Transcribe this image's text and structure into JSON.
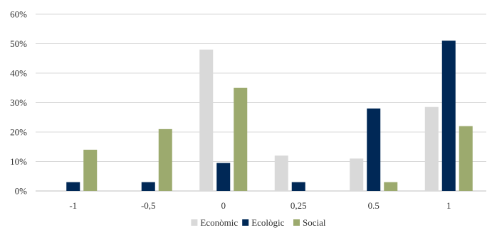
{
  "chart_data": {
    "type": "bar",
    "title": "",
    "xlabel": "",
    "ylabel": "",
    "categories": [
      "-1",
      "-0,5",
      "0",
      "0,25",
      "0.5",
      "1"
    ],
    "ylim": [
      0,
      60
    ],
    "yticks": [
      0,
      10,
      20,
      30,
      40,
      50,
      60
    ],
    "ytick_labels": [
      "0%",
      "10%",
      "20%",
      "30%",
      "40%",
      "50%",
      "60%"
    ],
    "grid": true,
    "legend_position": "bottom",
    "series": [
      {
        "name": "Econòmic",
        "color": "#d9d9d9",
        "values": [
          0,
          0,
          48,
          12,
          11,
          28.5
        ]
      },
      {
        "name": "Ecològic",
        "color": "#002856",
        "values": [
          3,
          3,
          9.5,
          3,
          28,
          51
        ]
      },
      {
        "name": "Social",
        "color": "#9caa6e",
        "values": [
          14,
          21,
          35,
          0,
          3,
          22
        ]
      }
    ]
  }
}
